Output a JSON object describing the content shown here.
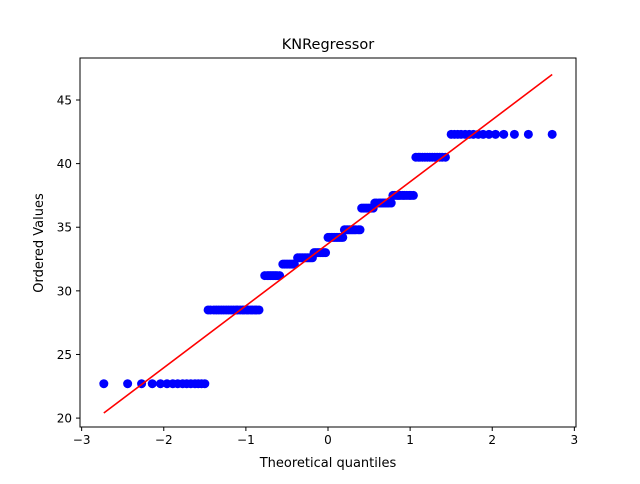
{
  "chart_data": {
    "type": "scatter",
    "title": "KNRegressor",
    "xlabel": "Theoretical quantiles",
    "ylabel": "Ordered Values",
    "xlim": [
      -3.02,
      3.02
    ],
    "ylim": [
      19.3,
      48.3
    ],
    "xticks": [
      -3,
      -2,
      -1,
      0,
      1,
      2,
      3
    ],
    "xtick_labels": [
      "−3",
      "−2",
      "−1",
      "0",
      "1",
      "2",
      "3"
    ],
    "yticks": [
      20,
      25,
      30,
      35,
      40,
      45
    ],
    "ytick_labels": [
      "20",
      "25",
      "30",
      "35",
      "40",
      "45"
    ],
    "grid": false,
    "legend": "none",
    "series": [
      {
        "kind": "points",
        "color": "#0000ff",
        "points": [
          [
            -2.73,
            22.7
          ],
          [
            -2.44,
            22.7
          ],
          [
            -2.27,
            22.7
          ],
          [
            -2.14,
            22.7
          ],
          [
            -2.04,
            22.7
          ],
          [
            -1.96,
            22.7
          ],
          [
            -1.89,
            22.7
          ],
          [
            -1.83,
            22.7
          ],
          [
            -1.77,
            22.7
          ],
          [
            -1.72,
            22.7
          ],
          [
            -1.67,
            22.7
          ],
          [
            -1.62,
            22.7
          ],
          [
            -1.58,
            22.7
          ],
          [
            -1.54,
            22.7
          ],
          [
            -1.5,
            22.7
          ],
          [
            -1.46,
            28.5
          ],
          [
            -1.43,
            28.5
          ],
          [
            -1.39,
            28.5
          ],
          [
            -1.36,
            28.5
          ],
          [
            -1.33,
            28.5
          ],
          [
            -1.3,
            28.5
          ],
          [
            -1.27,
            28.5
          ],
          [
            -1.24,
            28.5
          ],
          [
            -1.21,
            28.5
          ],
          [
            -1.18,
            28.5
          ],
          [
            -1.15,
            28.5
          ],
          [
            -1.12,
            28.5
          ],
          [
            -1.1,
            28.5
          ],
          [
            -1.07,
            28.5
          ],
          [
            -1.04,
            28.5
          ],
          [
            -1.02,
            28.5
          ],
          [
            -0.99,
            28.5
          ],
          [
            -0.97,
            28.5
          ],
          [
            -0.94,
            28.5
          ],
          [
            -0.92,
            28.5
          ],
          [
            -0.89,
            28.5
          ],
          [
            -0.87,
            28.5
          ],
          [
            -0.84,
            28.5
          ],
          [
            -0.77,
            31.2
          ],
          [
            -0.74,
            31.2
          ],
          [
            -0.72,
            31.2
          ],
          [
            -0.7,
            31.2
          ],
          [
            -0.68,
            31.2
          ],
          [
            -0.66,
            31.2
          ],
          [
            -0.64,
            31.2
          ],
          [
            -0.62,
            31.2
          ],
          [
            -0.59,
            31.2
          ],
          [
            -0.55,
            32.1
          ],
          [
            -0.53,
            32.1
          ],
          [
            -0.51,
            32.1
          ],
          [
            -0.49,
            32.1
          ],
          [
            -0.47,
            32.1
          ],
          [
            -0.45,
            32.1
          ],
          [
            -0.43,
            32.1
          ],
          [
            -0.41,
            32.1
          ],
          [
            -0.37,
            32.6
          ],
          [
            -0.35,
            32.6
          ],
          [
            -0.33,
            32.6
          ],
          [
            -0.31,
            32.6
          ],
          [
            -0.29,
            32.6
          ],
          [
            -0.27,
            32.6
          ],
          [
            -0.25,
            32.6
          ],
          [
            -0.23,
            32.6
          ],
          [
            -0.21,
            32.6
          ],
          [
            -0.19,
            32.6
          ],
          [
            -0.17,
            33.0
          ],
          [
            -0.15,
            33.0
          ],
          [
            -0.13,
            33.0
          ],
          [
            -0.11,
            33.0
          ],
          [
            -0.09,
            33.0
          ],
          [
            -0.07,
            33.0
          ],
          [
            -0.05,
            33.0
          ],
          [
            -0.03,
            33.0
          ],
          [
            0.0,
            34.2
          ],
          [
            0.02,
            34.2
          ],
          [
            0.04,
            34.2
          ],
          [
            0.06,
            34.2
          ],
          [
            0.08,
            34.2
          ],
          [
            0.1,
            34.2
          ],
          [
            0.12,
            34.2
          ],
          [
            0.14,
            34.2
          ],
          [
            0.16,
            34.2
          ],
          [
            0.18,
            34.2
          ],
          [
            0.2,
            34.8
          ],
          [
            0.22,
            34.8
          ],
          [
            0.24,
            34.8
          ],
          [
            0.26,
            34.8
          ],
          [
            0.28,
            34.8
          ],
          [
            0.3,
            34.8
          ],
          [
            0.32,
            34.8
          ],
          [
            0.34,
            34.8
          ],
          [
            0.37,
            34.8
          ],
          [
            0.39,
            34.8
          ],
          [
            0.41,
            36.5
          ],
          [
            0.43,
            36.5
          ],
          [
            0.45,
            36.5
          ],
          [
            0.47,
            36.5
          ],
          [
            0.49,
            36.5
          ],
          [
            0.51,
            36.5
          ],
          [
            0.53,
            36.5
          ],
          [
            0.55,
            36.5
          ],
          [
            0.57,
            36.9
          ],
          [
            0.59,
            36.9
          ],
          [
            0.62,
            36.9
          ],
          [
            0.64,
            36.9
          ],
          [
            0.66,
            36.9
          ],
          [
            0.68,
            36.9
          ],
          [
            0.7,
            36.9
          ],
          [
            0.72,
            36.9
          ],
          [
            0.74,
            36.9
          ],
          [
            0.77,
            36.9
          ],
          [
            0.79,
            37.5
          ],
          [
            0.81,
            37.5
          ],
          [
            0.84,
            37.5
          ],
          [
            0.86,
            37.5
          ],
          [
            0.88,
            37.5
          ],
          [
            0.91,
            37.5
          ],
          [
            0.93,
            37.5
          ],
          [
            0.96,
            37.5
          ],
          [
            0.99,
            37.5
          ],
          [
            1.01,
            37.5
          ],
          [
            1.04,
            37.5
          ],
          [
            1.07,
            40.5
          ],
          [
            1.1,
            40.5
          ],
          [
            1.12,
            40.5
          ],
          [
            1.15,
            40.5
          ],
          [
            1.18,
            40.5
          ],
          [
            1.21,
            40.5
          ],
          [
            1.24,
            40.5
          ],
          [
            1.27,
            40.5
          ],
          [
            1.3,
            40.5
          ],
          [
            1.33,
            40.5
          ],
          [
            1.36,
            40.5
          ],
          [
            1.39,
            40.5
          ],
          [
            1.43,
            40.5
          ],
          [
            1.5,
            42.3
          ],
          [
            1.54,
            42.3
          ],
          [
            1.58,
            42.3
          ],
          [
            1.62,
            42.3
          ],
          [
            1.67,
            42.3
          ],
          [
            1.72,
            42.3
          ],
          [
            1.77,
            42.3
          ],
          [
            1.83,
            42.3
          ],
          [
            1.89,
            42.3
          ],
          [
            1.96,
            42.3
          ],
          [
            2.04,
            42.3
          ],
          [
            2.14,
            42.3
          ],
          [
            2.27,
            42.3
          ],
          [
            2.44,
            42.3
          ],
          [
            2.73,
            42.3
          ]
        ]
      },
      {
        "kind": "line",
        "color": "#ff0000",
        "points": [
          [
            -2.73,
            20.4
          ],
          [
            2.73,
            47.0
          ]
        ]
      }
    ]
  }
}
